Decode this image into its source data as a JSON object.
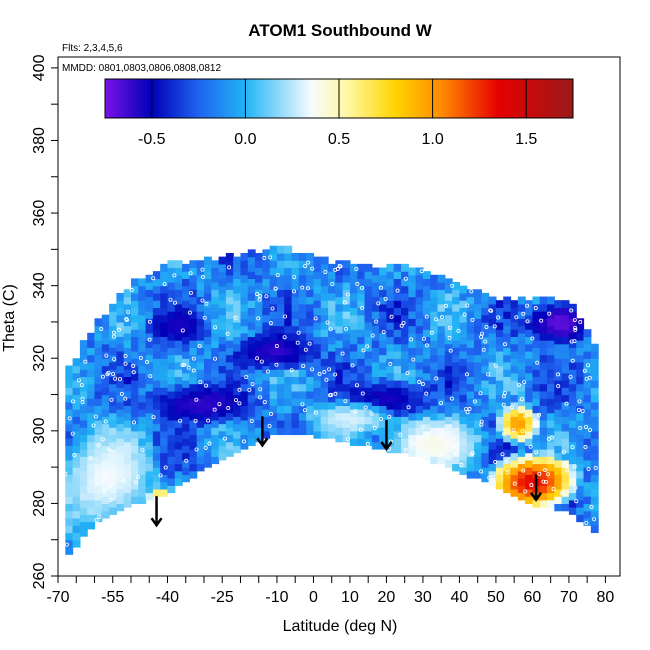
{
  "chart_data": {
    "type": "heatmap",
    "title": "ATOM1 Southbound W",
    "flights_note": "Flts: 2,3,4,5,6",
    "dates_note": "MMDD: 0801,0803,0806,0808,0812",
    "xlabel": "Latitude (deg N)",
    "ylabel": "Theta (C)",
    "xlim": [
      -70,
      84
    ],
    "ylim": [
      260,
      403
    ],
    "x_tick_values": [
      -70,
      -55,
      -40,
      -25,
      -10,
      0,
      10,
      20,
      30,
      40,
      50,
      60,
      70,
      80
    ],
    "x_tick_labels": [
      "-70",
      "-55",
      "-40",
      "-25",
      "-10",
      "0",
      "10",
      "20",
      "30",
      "40",
      "50",
      "60",
      "70",
      "80"
    ],
    "y_tick_values": [
      260,
      280,
      300,
      320,
      340,
      360,
      380,
      400
    ],
    "y_tick_labels": [
      "260",
      "280",
      "300",
      "320",
      "340",
      "360",
      "380",
      "400"
    ],
    "colorbar": {
      "range": [
        -0.75,
        1.75
      ],
      "tick_values": [
        -0.5,
        0.0,
        0.5,
        1.0,
        1.5
      ],
      "tick_labels": [
        "-0.5",
        "0.0",
        "0.5",
        "1.0",
        "1.5"
      ],
      "divider_values": [
        -0.5,
        0.0,
        0.5,
        1.0,
        1.5
      ]
    },
    "colors": {
      "purple": "#7a12e6",
      "dark_blue": "#0000b8",
      "blue": "#1f63f0",
      "sky_blue": "#22b4f5",
      "white": "#f5fbff",
      "light_yellow": "#fff7a0",
      "yellow": "#ffd400",
      "orange": "#ff8a00",
      "red": "#e60000",
      "dark_red": "#9a1a1a",
      "arrow": "#000000",
      "obs_marker": "#ffffff"
    },
    "data_envelope": {
      "latitude": [
        -68,
        -60,
        -50,
        -40,
        -30,
        -20,
        -10,
        0,
        10,
        20,
        30,
        40,
        50,
        60,
        70,
        78
      ],
      "theta_top": [
        315,
        328,
        340,
        345,
        346,
        348,
        350,
        347,
        345,
        345,
        344,
        340,
        336,
        336,
        336,
        322
      ],
      "theta_bottom": [
        265,
        275,
        280,
        283,
        290,
        295,
        300,
        299,
        297,
        295,
        293,
        289,
        285,
        280,
        278,
        272
      ]
    },
    "features": [
      {
        "type": "strong-descent",
        "latitude": [
          -44,
          -18
        ],
        "theta": [
          303,
          312
        ],
        "value": -0.6
      },
      {
        "type": "strong-descent",
        "latitude": [
          -44,
          -30
        ],
        "theta": [
          325,
          333
        ],
        "value": -0.55
      },
      {
        "type": "strong-descent",
        "latitude": [
          -20,
          0
        ],
        "theta": [
          318,
          326
        ],
        "value": -0.6
      },
      {
        "type": "strong-descent",
        "latitude": [
          10,
          30
        ],
        "theta": [
          305,
          313
        ],
        "value": -0.55
      },
      {
        "type": "strong-descent",
        "latitude": [
          60,
          75
        ],
        "theta": [
          325,
          335
        ],
        "value": -0.7
      },
      {
        "type": "near-zero",
        "latitude": [
          -68,
          -45
        ],
        "theta": [
          275,
          300
        ],
        "value": 0.35
      },
      {
        "type": "near-zero",
        "latitude": [
          20,
          45
        ],
        "theta": [
          290,
          303
        ],
        "value": 0.4
      },
      {
        "type": "near-zero",
        "latitude": [
          0,
          20
        ],
        "theta": [
          300,
          307
        ],
        "value": 0.3
      },
      {
        "type": "strong-ascent",
        "latitude": [
          50,
          70
        ],
        "theta": [
          280,
          292
        ],
        "value": 1.35
      },
      {
        "type": "strong-ascent",
        "latitude": [
          52,
          60
        ],
        "theta": [
          298,
          306
        ],
        "value": 1.0
      },
      {
        "type": "strong-ascent",
        "latitude": [
          -44,
          -40
        ],
        "theta": [
          278,
          283
        ],
        "value": 1.0
      }
    ],
    "arrows": [
      {
        "latitude": -43,
        "theta_from": 282,
        "theta_to": 274
      },
      {
        "latitude": -14,
        "theta_from": 304,
        "theta_to": 296
      },
      {
        "latitude": 20,
        "theta_from": 303,
        "theta_to": 295
      },
      {
        "latitude": 61,
        "theta_from": 288,
        "theta_to": 281
      }
    ]
  }
}
